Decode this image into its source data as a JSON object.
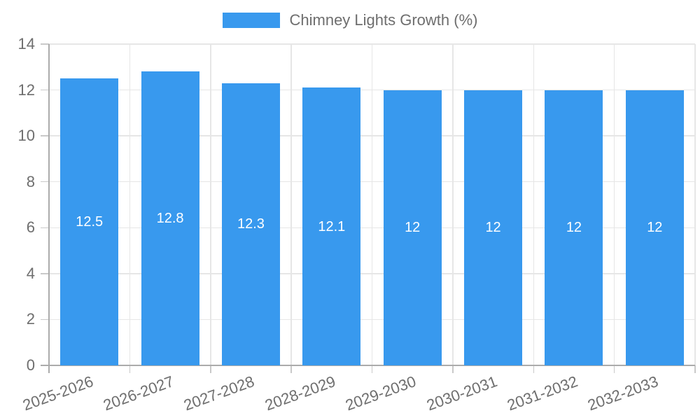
{
  "chart_data": {
    "type": "bar",
    "title": "Chimney Lights Growth (%)",
    "categories": [
      "2025-2026",
      "2026-2027",
      "2027-2028",
      "2028-2029",
      "2029-2030",
      "2030-2031",
      "2031-2032",
      "2032-2033"
    ],
    "values": [
      12.5,
      12.8,
      12.3,
      12.1,
      12,
      12,
      12,
      12
    ],
    "value_labels": [
      "12.5",
      "12.8",
      "12.3",
      "12.1",
      "12",
      "12",
      "12",
      "12"
    ],
    "yticks": [
      0,
      2,
      4,
      6,
      8,
      10,
      12,
      14
    ],
    "ylim": [
      0,
      14
    ],
    "xlabel": "",
    "ylabel": "",
    "grid": true,
    "legend_position": "top",
    "x_label_rotation_deg": -20,
    "colors": {
      "bar": "#3899ee",
      "value_label": "#ffffff",
      "axis_text": "#6e6e6e",
      "grid_line": "#e6e6e6",
      "tick_line": "#c9c9c9",
      "axis_line": "#ababab"
    }
  }
}
